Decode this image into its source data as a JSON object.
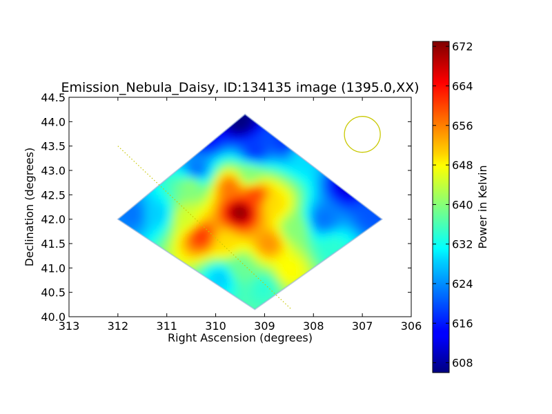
{
  "chart_data": {
    "type": "heatmap",
    "title": "Emission_Nebula_Daisy, ID:134135 image (1395.0,XX)",
    "xlabel": "Right Ascension (degrees)",
    "ylabel": "Declination (degrees)",
    "xlim": [
      313,
      306
    ],
    "ylim": [
      40.0,
      44.5
    ],
    "x_ticks": [
      313,
      312,
      311,
      310,
      309,
      308,
      307,
      306
    ],
    "x_tick_labels": [
      "313",
      "312",
      "311",
      "310",
      "309",
      "308",
      "307",
      "306"
    ],
    "y_ticks": [
      40.0,
      40.5,
      41.0,
      41.5,
      42.0,
      42.5,
      43.0,
      43.5,
      44.0,
      44.5
    ],
    "y_tick_labels": [
      "40.0",
      "40.5",
      "41.0",
      "41.5",
      "42.0",
      "42.5",
      "43.0",
      "43.5",
      "44.0",
      "44.5"
    ],
    "colorbar": {
      "label": "Power in Kelvin",
      "min": 606,
      "max": 673,
      "ticks": [
        608,
        616,
        624,
        632,
        640,
        648,
        656,
        664,
        672
      ],
      "tick_labels": [
        "608",
        "616",
        "624",
        "632",
        "640",
        "648",
        "656",
        "664",
        "672"
      ],
      "colormap": "jet"
    },
    "footprint_corners": [
      [
        309.4,
        44.15
      ],
      [
        306.6,
        42.0
      ],
      [
        309.2,
        40.15
      ],
      [
        312.0,
        42.0
      ]
    ],
    "peak": {
      "ra": 309.5,
      "dec": 42.15,
      "value": 672
    },
    "hotspots": [
      {
        "ra": 309.5,
        "dec": 42.15,
        "value": 672
      },
      {
        "ra": 310.3,
        "dec": 41.65,
        "value": 661
      },
      {
        "ra": 309.2,
        "dec": 42.5,
        "value": 660
      },
      {
        "ra": 309.7,
        "dec": 42.65,
        "value": 657
      },
      {
        "ra": 309.8,
        "dec": 41.5,
        "value": 650
      },
      {
        "ra": 308.9,
        "dec": 41.5,
        "value": 655
      },
      {
        "ra": 308.8,
        "dec": 42.3,
        "value": 650
      },
      {
        "ra": 308.5,
        "dec": 40.95,
        "value": 648
      },
      {
        "ra": 310.6,
        "dec": 42.0,
        "value": 645
      },
      {
        "ra": 309.3,
        "dec": 42.9,
        "value": 640
      },
      {
        "ra": 310.5,
        "dec": 42.7,
        "value": 640
      },
      {
        "ra": 308.4,
        "dec": 41.8,
        "value": 640
      },
      {
        "ra": 309.5,
        "dec": 41.0,
        "value": 638
      },
      {
        "ra": 309.0,
        "dec": 40.6,
        "value": 634
      },
      {
        "ra": 309.9,
        "dec": 40.8,
        "value": 628
      },
      {
        "ra": 311.2,
        "dec": 42.1,
        "value": 628
      },
      {
        "ra": 307.8,
        "dec": 42.0,
        "value": 622
      },
      {
        "ra": 307.6,
        "dec": 41.4,
        "value": 634
      },
      {
        "ra": 308.2,
        "dec": 43.3,
        "value": 629
      },
      {
        "ra": 309.2,
        "dec": 43.4,
        "value": 618
      },
      {
        "ra": 310.4,
        "dec": 43.0,
        "value": 622
      },
      {
        "ra": 311.7,
        "dec": 42.1,
        "value": 622
      },
      {
        "ra": 309.5,
        "dec": 44.0,
        "value": 606
      },
      {
        "ra": 307.3,
        "dec": 42.7,
        "value": 612
      },
      {
        "ra": 306.8,
        "dec": 42.1,
        "value": 620
      },
      {
        "ra": 310.2,
        "dec": 43.7,
        "value": 614
      },
      {
        "ra": 308.6,
        "dec": 43.6,
        "value": 618
      }
    ],
    "beam_circle": {
      "ra": 307.0,
      "dec": 43.74,
      "color": "#c8c800"
    },
    "scan_line": {
      "start": [
        312.0,
        43.5
      ],
      "end": [
        308.45,
        40.15
      ],
      "color": "#c8c800"
    },
    "grid": false
  }
}
